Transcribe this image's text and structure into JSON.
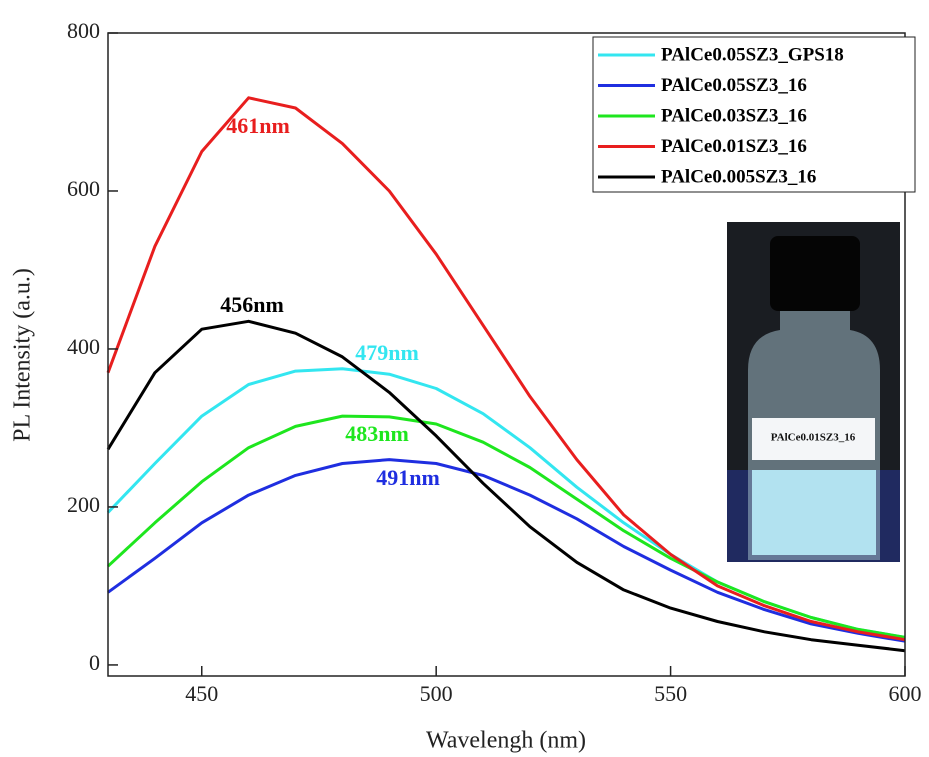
{
  "chart_data": {
    "type": "line",
    "x_label": "Wavelengh (nm)",
    "y_label": "PL Intensity (a.u.)",
    "x": [
      430,
      440,
      450,
      460,
      470,
      480,
      490,
      500,
      510,
      520,
      530,
      540,
      550,
      560,
      570,
      580,
      590,
      600
    ],
    "series": [
      {
        "name": "PAlCe0.05SZ3_GPS18",
        "color": "#33e6f0",
        "values": [
          193,
          255,
          315,
          355,
          372,
          375,
          368,
          350,
          318,
          275,
          225,
          180,
          140,
          105,
          80,
          60,
          45,
          35
        ]
      },
      {
        "name": "PAlCe0.05SZ3_16",
        "color": "#1f2ee0",
        "values": [
          92,
          135,
          180,
          215,
          240,
          255,
          260,
          255,
          240,
          215,
          185,
          150,
          120,
          92,
          70,
          52,
          40,
          30
        ]
      },
      {
        "name": "PAlCe0.03SZ3_16",
        "color": "#1ee61e",
        "values": [
          125,
          180,
          232,
          275,
          302,
          315,
          314,
          305,
          282,
          250,
          210,
          170,
          135,
          105,
          80,
          60,
          45,
          35
        ]
      },
      {
        "name": "PAlCe0.01SZ3_16",
        "color": "#e81e1e",
        "values": [
          370,
          530,
          650,
          718,
          705,
          660,
          600,
          520,
          430,
          340,
          260,
          190,
          140,
          100,
          75,
          55,
          42,
          32
        ]
      },
      {
        "name": "PAlCe0.005SZ3_16",
        "color": "#000000",
        "values": [
          273,
          370,
          425,
          435,
          420,
          390,
          345,
          290,
          230,
          175,
          130,
          95,
          72,
          55,
          42,
          32,
          25,
          18
        ]
      }
    ],
    "annotations": [
      {
        "text": "461nm",
        "color": "#e81e1e"
      },
      {
        "text": "456nm",
        "color": "#000000"
      },
      {
        "text": "479nm",
        "color": "#33e6f0"
      },
      {
        "text": "483nm",
        "color": "#1ee61e"
      },
      {
        "text": "491nm",
        "color": "#1f2ee0"
      }
    ],
    "inset_label": "PAlCe0.01SZ3_16",
    "xlim": [
      430,
      600
    ],
    "xticks": [
      450,
      500,
      550,
      600
    ],
    "ylim": [
      -14,
      800
    ],
    "yticks": [
      0,
      200,
      400,
      600,
      800
    ],
    "legend": "upper right"
  }
}
